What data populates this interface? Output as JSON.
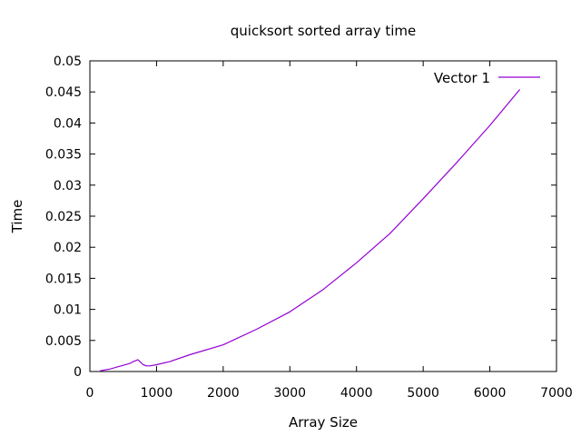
{
  "chart_data": {
    "type": "line",
    "title": "quicksort sorted array time",
    "xlabel": "Array Size",
    "ylabel": "Time",
    "xlim": [
      0,
      7000
    ],
    "ylim": [
      0,
      0.05
    ],
    "xticks": [
      "0",
      "1000",
      "2000",
      "3000",
      "4000",
      "5000",
      "6000",
      "7000"
    ],
    "yticks": [
      "0",
      "0.005",
      "0.01",
      "0.015",
      "0.02",
      "0.025",
      "0.03",
      "0.035",
      "0.04",
      "0.045",
      "0.05"
    ],
    "grid": false,
    "legend": "top-right",
    "series": [
      {
        "name": "Vector 1",
        "color": "#9400d3",
        "x": [
          150,
          200,
          300,
          400,
          500,
          600,
          650,
          700,
          720,
          750,
          800,
          850,
          900,
          1000,
          1200,
          1500,
          2000,
          2500,
          3000,
          3500,
          4000,
          4500,
          5000,
          5500,
          6000,
          6450
        ],
        "y": [
          0.0001,
          0.0002,
          0.0004,
          0.0007,
          0.001,
          0.0013,
          0.0016,
          0.0018,
          0.0019,
          0.0016,
          0.0011,
          0.0009,
          0.0009,
          0.0011,
          0.0016,
          0.0027,
          0.0043,
          0.0068,
          0.0096,
          0.0132,
          0.0175,
          0.0222,
          0.0278,
          0.0336,
          0.0396,
          0.0454
        ]
      }
    ]
  }
}
